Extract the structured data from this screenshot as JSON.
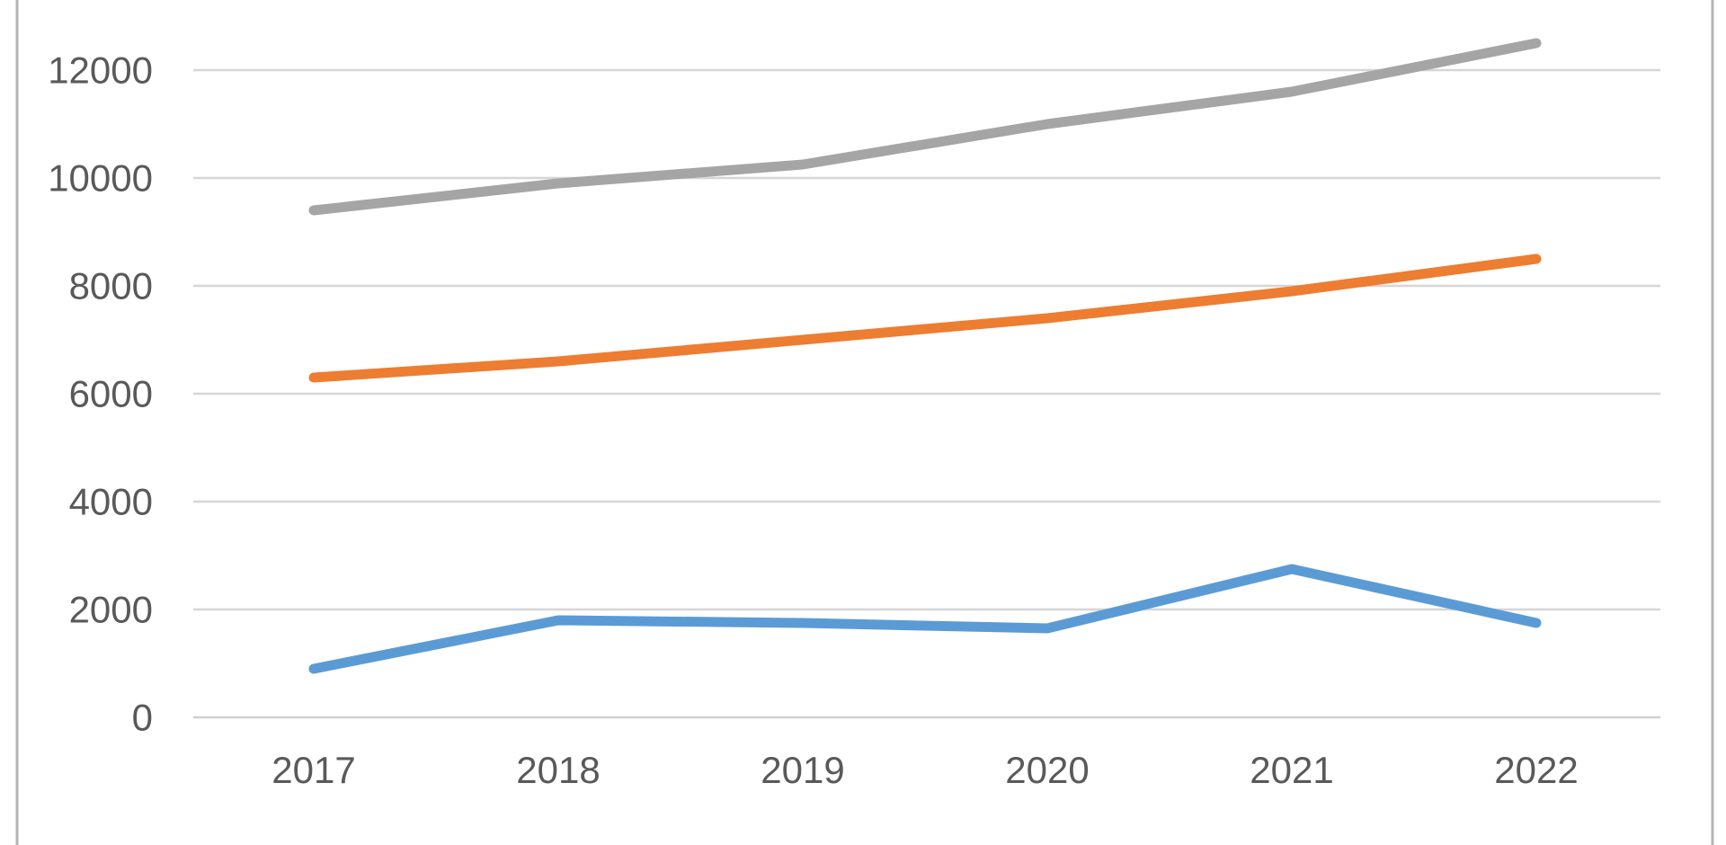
{
  "chart": {
    "title": "",
    "background_color": "#ffffff",
    "border_color": "#b5b5b5",
    "gridline_color": "#d6d6d6",
    "axis_line_color": "#d0d0d0",
    "axis_text_color": "#595959",
    "legend": "none"
  },
  "chart_data": {
    "type": "line",
    "title": "",
    "xlabel": "",
    "ylabel": "",
    "categories": [
      "2017",
      "2018",
      "2019",
      "2020",
      "2021",
      "2022"
    ],
    "series": [
      {
        "name": "gray",
        "color": "#a5a5a5",
        "values": [
          9400,
          9900,
          10250,
          11000,
          11600,
          12500
        ]
      },
      {
        "name": "orange",
        "color": "#ed7d31",
        "values": [
          6300,
          6600,
          7000,
          7400,
          7900,
          8500
        ]
      },
      {
        "name": "blue",
        "color": "#5b9bd5",
        "values": [
          900,
          1800,
          1750,
          1650,
          2750,
          1750
        ]
      }
    ],
    "y_ticks": [
      0,
      2000,
      4000,
      6000,
      8000,
      10000,
      12000
    ],
    "ylim": [
      0,
      13300
    ],
    "grid": true,
    "legend_position": "none"
  }
}
